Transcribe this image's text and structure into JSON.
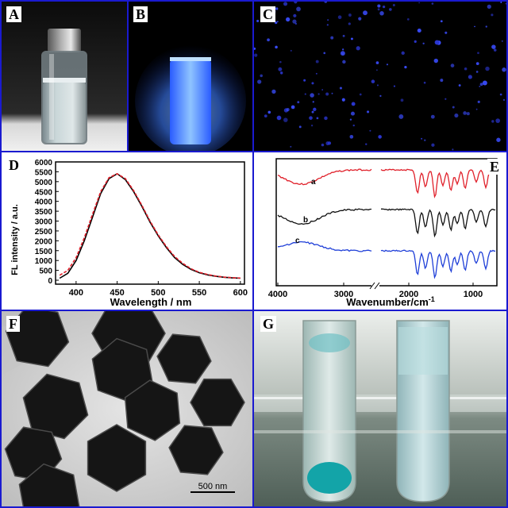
{
  "panels": {
    "A": {
      "label": "A"
    },
    "B": {
      "label": "B"
    },
    "C": {
      "label": "C"
    },
    "D": {
      "label": "D"
    },
    "E": {
      "label": "E"
    },
    "F": {
      "label": "F",
      "scale_bar": "500 nm"
    },
    "G": {
      "label": "G"
    }
  },
  "colors": {
    "frame": "#1a1ad0",
    "fluorescence": "#3f7dff",
    "red": "#e0202a",
    "blue": "#1f3fd8",
    "teal": "#13a4a8"
  },
  "chart_data": [
    {
      "panel": "D",
      "type": "line",
      "xlabel": "Wavelength / nm",
      "ylabel": "FL intensity / a.u.",
      "xlim": [
        375,
        605
      ],
      "ylim": [
        -200,
        6000
      ],
      "xticks": [
        400,
        450,
        500,
        550,
        600
      ],
      "yticks": [
        0,
        500,
        1000,
        1500,
        2000,
        2500,
        3000,
        3500,
        4000,
        4500,
        5000,
        5500,
        6000
      ],
      "series": [
        {
          "color": "#000000",
          "style": "solid",
          "x": [
            380,
            390,
            400,
            410,
            420,
            430,
            440,
            450,
            460,
            470,
            480,
            490,
            500,
            510,
            520,
            530,
            540,
            550,
            560,
            570,
            580,
            590,
            600
          ],
          "y": [
            100,
            350,
            1000,
            2000,
            3200,
            4400,
            5150,
            5400,
            5100,
            4500,
            3750,
            2950,
            2250,
            1650,
            1150,
            800,
            550,
            380,
            270,
            200,
            150,
            120,
            100
          ]
        },
        {
          "color": "#e0202a",
          "style": "dashed",
          "x": [
            380,
            390,
            400,
            410,
            420,
            430,
            440,
            450,
            460,
            470,
            480,
            490,
            500,
            510,
            520,
            530,
            540,
            550,
            560,
            570,
            580,
            590,
            600
          ],
          "y": [
            250,
            500,
            1150,
            2150,
            3350,
            4500,
            5200,
            5400,
            5150,
            4550,
            3800,
            3000,
            2300,
            1700,
            1200,
            850,
            580,
            400,
            290,
            210,
            160,
            130,
            110
          ]
        }
      ]
    },
    {
      "panel": "E",
      "type": "line",
      "xlabel": "Wavenumber/cm",
      "xlabel_sup": "-1",
      "xticks": [
        4000,
        3000,
        2000,
        1000
      ],
      "series_labels": [
        "a",
        "b",
        "c"
      ]
    }
  ]
}
